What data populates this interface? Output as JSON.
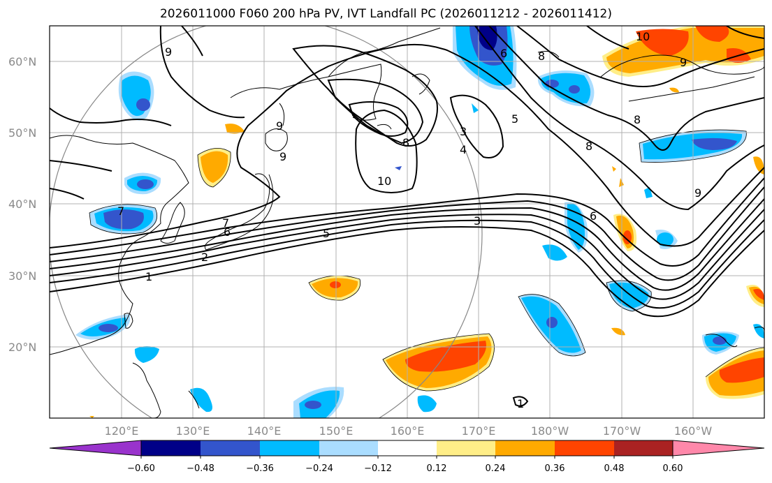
{
  "title": "2026011000 F060 200 hPa PV, IVT Landfall PC (2026011212 - 2026011412)",
  "map": {
    "lat_labels": [
      "60°N",
      "50°N",
      "40°N",
      "30°N",
      "20°N"
    ],
    "lon_labels": [
      "120°E",
      "130°E",
      "140°E",
      "150°E",
      "160°E",
      "170°E",
      "180°W",
      "170°W",
      "160°W"
    ],
    "gridline_color": "#b0b0b0",
    "label_color": "#8a8a8a",
    "circle_color": "#888888"
  },
  "contour_labels": [
    {
      "text": "9"
    },
    {
      "text": "9"
    },
    {
      "text": "9"
    },
    {
      "text": "9"
    },
    {
      "text": "9"
    },
    {
      "text": "8"
    },
    {
      "text": "8"
    },
    {
      "text": "8"
    },
    {
      "text": "8"
    },
    {
      "text": "10"
    },
    {
      "text": "10"
    },
    {
      "text": "7"
    },
    {
      "text": "7"
    },
    {
      "text": "6"
    },
    {
      "text": "6"
    },
    {
      "text": "6"
    },
    {
      "text": "5"
    },
    {
      "text": "5"
    },
    {
      "text": "4"
    },
    {
      "text": "3"
    },
    {
      "text": "3"
    },
    {
      "text": "2"
    },
    {
      "text": "1"
    },
    {
      "text": "1"
    }
  ],
  "colorbar": {
    "colors": [
      "#9933cc",
      "#000088",
      "#3355cc",
      "#00bbff",
      "#aaddff",
      "#ffffff",
      "#ffee88",
      "#ffaa00",
      "#ff4400",
      "#aa2222",
      "#ff88aa"
    ],
    "tick_labels": [
      "−0.60",
      "−0.48",
      "−0.36",
      "−0.24",
      "−0.12",
      "0.12",
      "0.24",
      "0.36",
      "0.48",
      "0.60"
    ]
  }
}
